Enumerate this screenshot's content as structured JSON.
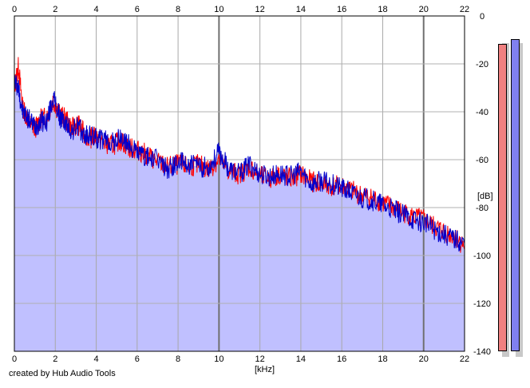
{
  "chart_data": {
    "type": "area",
    "title": "",
    "xlabel": "[kHz]",
    "ylabel": "[dB]",
    "xlim": [
      0,
      22
    ],
    "ylim": [
      -140,
      0
    ],
    "x_ticks": [
      "0",
      "2",
      "4",
      "6",
      "8",
      "10",
      "12",
      "14",
      "16",
      "18",
      "20",
      "22"
    ],
    "y_ticks": [
      "0",
      "-20",
      "-40",
      "-60",
      "-80",
      "-100",
      "-120",
      "-140"
    ],
    "grid": true,
    "legend": "none",
    "series": [
      {
        "color": "#ff0000",
        "x": [
          0,
          0.2,
          0.4,
          0.7,
          1,
          1.3,
          1.6,
          1.9,
          2.2,
          2.5,
          2.8,
          3.1,
          3.4,
          3.7,
          4,
          4.4,
          4.8,
          5.2,
          5.6,
          6,
          6.5,
          7,
          7.5,
          8,
          8.5,
          9,
          9.5,
          10,
          10.5,
          11,
          11.5,
          12,
          12.5,
          13,
          13.5,
          14,
          14.5,
          15,
          15.5,
          16,
          16.5,
          17,
          17.5,
          18,
          18.5,
          19,
          19.5,
          20,
          20.5,
          21,
          21.5,
          22
        ],
        "values": [
          -30,
          -21,
          -38,
          -44,
          -47,
          -43,
          -42,
          -35,
          -41,
          -43,
          -47,
          -45,
          -49,
          -51,
          -50,
          -53,
          -54,
          -52,
          -55,
          -56,
          -58,
          -61,
          -63,
          -62,
          -63,
          -62,
          -64,
          -60,
          -65,
          -66,
          -63,
          -67,
          -68,
          -66,
          -68,
          -66,
          -69,
          -70,
          -71,
          -71,
          -73,
          -75,
          -76,
          -78,
          -80,
          -82,
          -84,
          -85,
          -88,
          -90,
          -92,
          -96
        ]
      },
      {
        "color": "#0000cc",
        "x": [
          0,
          0.2,
          0.4,
          0.7,
          1,
          1.3,
          1.6,
          1.9,
          2.2,
          2.5,
          2.8,
          3.1,
          3.4,
          3.7,
          4,
          4.4,
          4.8,
          5.2,
          5.6,
          6,
          6.5,
          7,
          7.5,
          8,
          8.5,
          9,
          9.5,
          10,
          10.5,
          11,
          11.5,
          12,
          12.5,
          13,
          13.5,
          14,
          14.5,
          15,
          15.5,
          16,
          16.5,
          17,
          17.5,
          18,
          18.5,
          19,
          19.5,
          20,
          20.5,
          21,
          21.5,
          22
        ],
        "values": [
          -27,
          -30,
          -40,
          -43,
          -46,
          -44,
          -44,
          -34,
          -42,
          -45,
          -48,
          -46,
          -50,
          -50,
          -51,
          -52,
          -53,
          -51,
          -54,
          -57,
          -59,
          -60,
          -64,
          -61,
          -62,
          -63,
          -63,
          -57,
          -64,
          -66,
          -62,
          -66,
          -67,
          -66,
          -67,
          -65,
          -70,
          -69,
          -70,
          -72,
          -74,
          -76,
          -77,
          -79,
          -81,
          -83,
          -85,
          -86,
          -89,
          -91,
          -93,
          -95
        ]
      }
    ],
    "fill_color": "#c0c0ff",
    "meters": [
      {
        "color": "#f08080",
        "level": 0.983
      },
      {
        "color": "#8080f0",
        "level": 0.998
      }
    ]
  },
  "credit": "created by Hub Audio Tools"
}
